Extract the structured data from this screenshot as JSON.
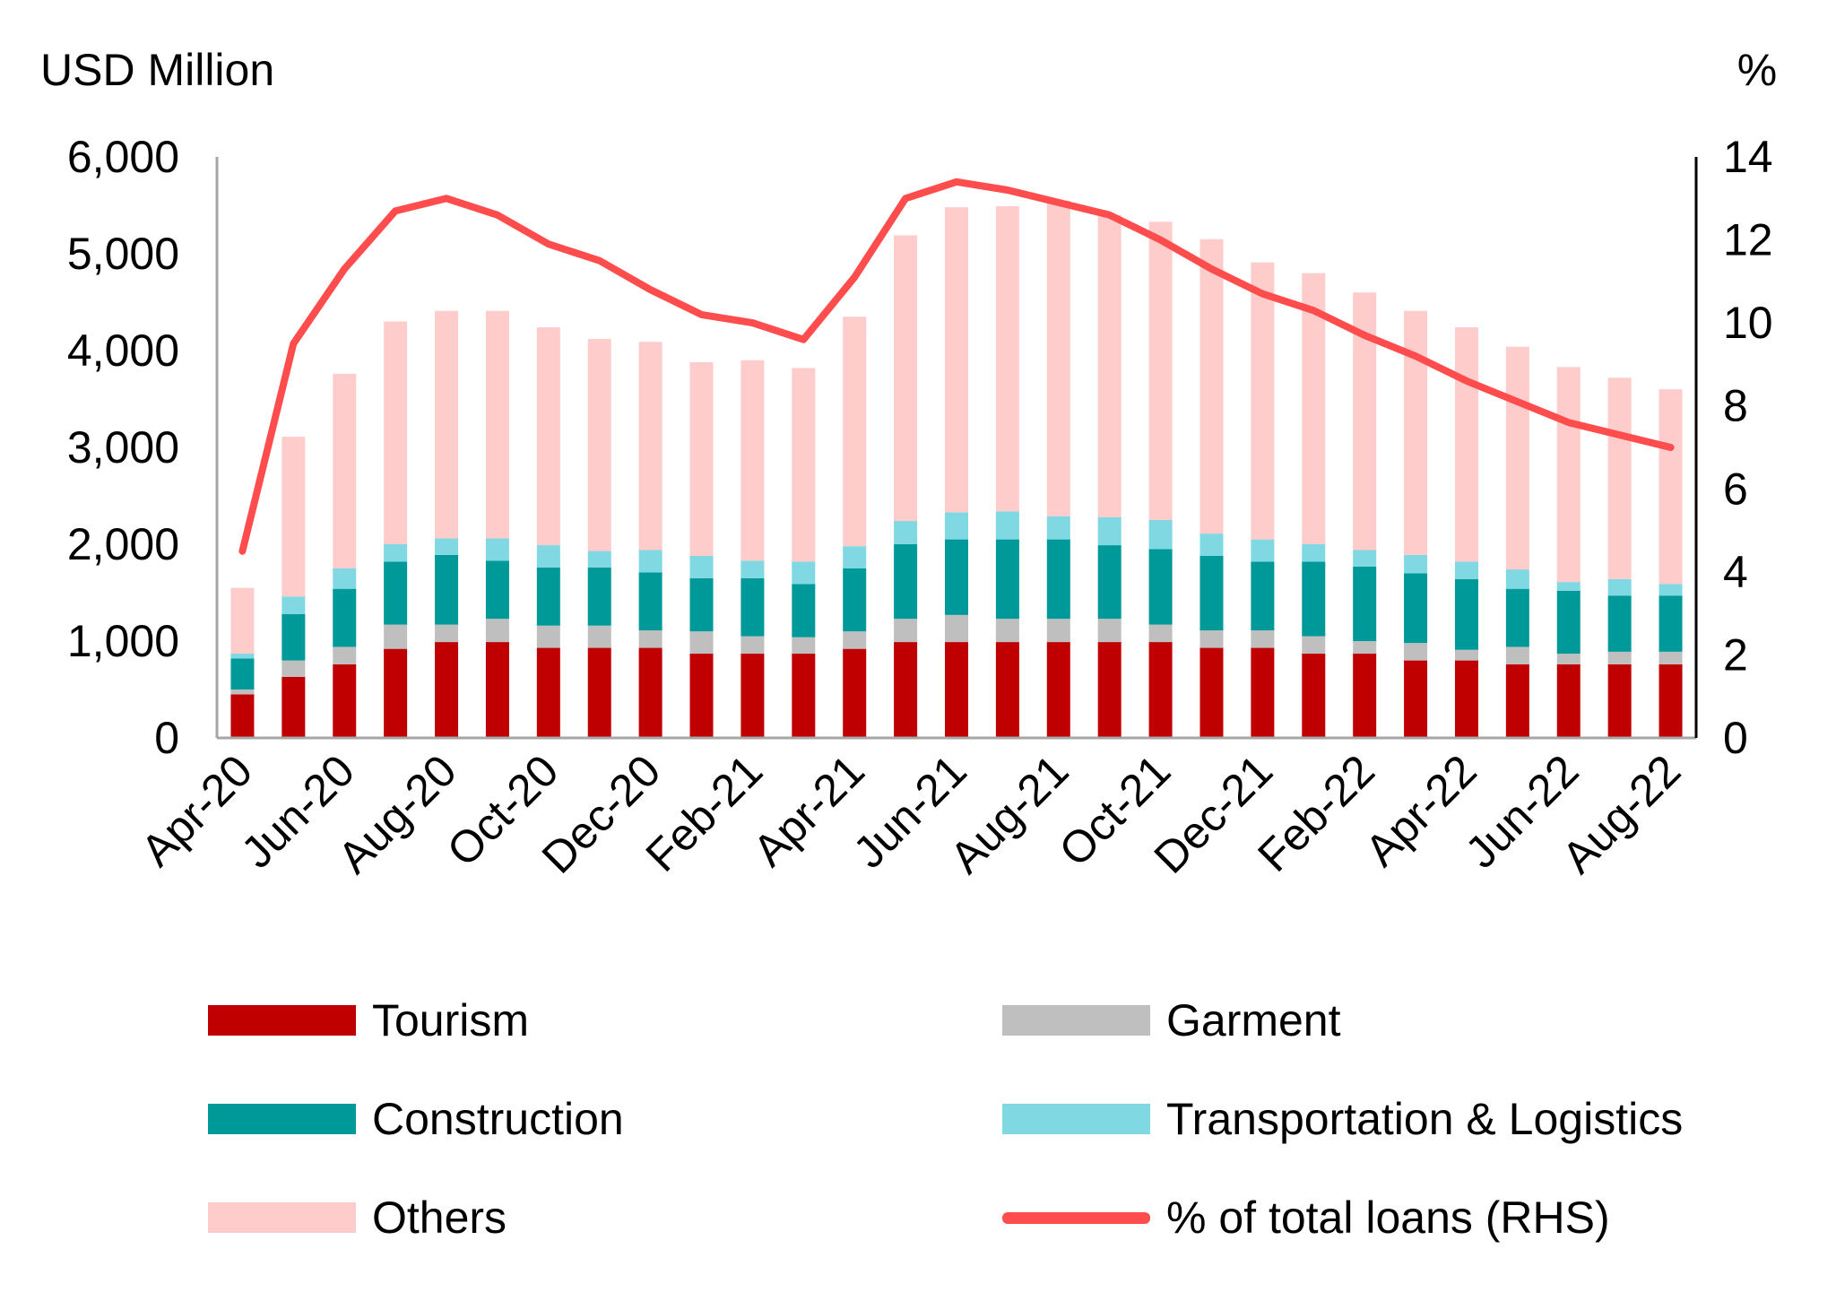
{
  "chart_data": {
    "type": "bar",
    "stacked": true,
    "left_axis_unit": "USD Million",
    "right_axis_unit": "%",
    "ylim": [
      0,
      6000
    ],
    "yticks": [
      0,
      1000,
      2000,
      3000,
      4000,
      5000,
      6000
    ],
    "ytick_labels": [
      "0",
      "1,000",
      "2,000",
      "3,000",
      "4,000",
      "5,000",
      "6,000"
    ],
    "y2lim": [
      0,
      14
    ],
    "y2ticks": [
      0,
      2,
      4,
      6,
      8,
      10,
      12,
      14
    ],
    "y2tick_labels": [
      "0",
      "2",
      "4",
      "6",
      "8",
      "10",
      "12",
      "14"
    ],
    "categories": [
      "Apr-20",
      "May-20",
      "Jun-20",
      "Jul-20",
      "Aug-20",
      "Sep-20",
      "Oct-20",
      "Nov-20",
      "Dec-20",
      "Jan-21",
      "Feb-21",
      "Mar-21",
      "Apr-21",
      "May-21",
      "Jun-21",
      "Jul-21",
      "Aug-21",
      "Sep-21",
      "Oct-21",
      "Nov-21",
      "Dec-21",
      "Jan-22",
      "Feb-22",
      "Mar-22",
      "Apr-22",
      "May-22",
      "Jun-22",
      "Jul-22",
      "Aug-22"
    ],
    "xtick_labels": [
      "Apr-20",
      "Jun-20",
      "Aug-20",
      "Oct-20",
      "Dec-20",
      "Feb-21",
      "Apr-21",
      "Jun-21",
      "Aug-21",
      "Oct-21",
      "Dec-21",
      "Feb-22",
      "Apr-22",
      "Jun-22",
      "Aug-22"
    ],
    "series": [
      {
        "name": "Tourism",
        "color": "#c00000",
        "values": [
          450,
          630,
          760,
          920,
          990,
          990,
          930,
          930,
          930,
          870,
          870,
          870,
          920,
          990,
          990,
          990,
          990,
          990,
          990,
          930,
          930,
          870,
          870,
          800,
          800,
          760,
          760,
          760,
          760
        ]
      },
      {
        "name": "Garment",
        "color": "#bfbfbf",
        "values": [
          50,
          170,
          180,
          250,
          180,
          240,
          230,
          230,
          180,
          230,
          180,
          170,
          180,
          240,
          280,
          240,
          240,
          240,
          180,
          180,
          180,
          180,
          130,
          180,
          110,
          180,
          110,
          130,
          130
        ]
      },
      {
        "name": "Construction",
        "color": "#009999",
        "values": [
          320,
          480,
          600,
          650,
          720,
          600,
          600,
          600,
          600,
          550,
          600,
          550,
          650,
          770,
          780,
          820,
          820,
          760,
          780,
          770,
          710,
          770,
          770,
          720,
          730,
          600,
          650,
          580,
          580
        ]
      },
      {
        "name": "Transportation & Logistics",
        "color": "#7fd8e2",
        "values": [
          50,
          180,
          210,
          180,
          170,
          230,
          230,
          170,
          230,
          230,
          180,
          230,
          230,
          240,
          280,
          290,
          240,
          290,
          300,
          230,
          230,
          180,
          170,
          190,
          180,
          200,
          90,
          170,
          120
        ]
      },
      {
        "name": "Others",
        "color": "#ffcccc",
        "values": [
          680,
          1650,
          2010,
          2300,
          2350,
          2350,
          2250,
          2190,
          2150,
          2000,
          2070,
          2000,
          2370,
          2950,
          3150,
          3150,
          3260,
          3120,
          3080,
          3040,
          2860,
          2800,
          2660,
          2520,
          2420,
          2300,
          2220,
          2080,
          2010
        ]
      }
    ],
    "line_series": {
      "name": "% of total loans (RHS)",
      "axis": "right",
      "color": "#ff4d4d",
      "values": [
        4.5,
        9.5,
        11.3,
        12.7,
        13.0,
        12.6,
        11.9,
        11.5,
        10.8,
        10.2,
        10.0,
        9.6,
        11.1,
        13.0,
        13.4,
        13.2,
        12.9,
        12.6,
        12.0,
        11.3,
        10.7,
        10.3,
        9.7,
        9.2,
        8.6,
        8.1,
        7.6,
        7.3,
        7.0
      ]
    },
    "legend": [
      {
        "label": "Tourism",
        "kind": "bar",
        "color": "#c00000"
      },
      {
        "label": "Garment",
        "kind": "bar",
        "color": "#bfbfbf"
      },
      {
        "label": "Construction",
        "kind": "bar",
        "color": "#009999"
      },
      {
        "label": "Transportation & Logistics",
        "kind": "bar",
        "color": "#7fd8e2"
      },
      {
        "label": "Others",
        "kind": "bar",
        "color": "#ffcccc"
      },
      {
        "label": "% of total loans (RHS)",
        "kind": "line",
        "color": "#ff4d4d"
      }
    ],
    "legend_position": "bottom",
    "grid": false
  }
}
